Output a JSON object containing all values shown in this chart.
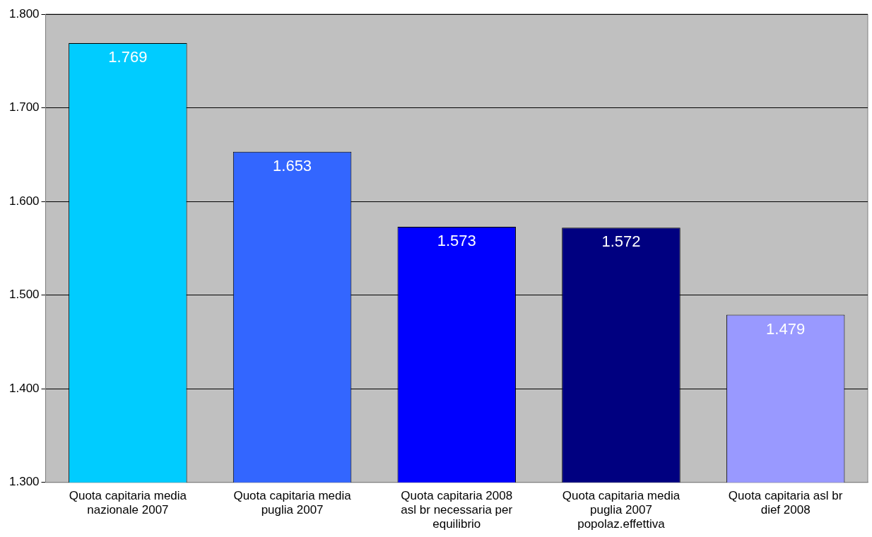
{
  "chart_data": {
    "type": "bar",
    "categories": [
      "Quota capitaria media nazionale 2007",
      "Quota capitaria media puglia 2007",
      "Quota capitaria 2008 asl br necessaria per equilibrio",
      "Quota capitaria media puglia 2007 popolaz.effettiva",
      "Quota capitaria asl br dief 2008"
    ],
    "values": [
      1769,
      1653,
      1573,
      1572,
      1479
    ],
    "colors": [
      "#00ccff",
      "#3366ff",
      "#0000ff",
      "#000080",
      "#9999ff"
    ],
    "value_labels": [
      "1.769",
      "1.653",
      "1.573",
      "1.572",
      "1.479"
    ],
    "ylim": [
      1300,
      1800
    ],
    "yticks": [
      {
        "value": 1300,
        "label": "1.300"
      },
      {
        "value": 1400,
        "label": "1.400"
      },
      {
        "value": 1500,
        "label": "1.500"
      },
      {
        "value": 1600,
        "label": "1.600"
      },
      {
        "value": 1700,
        "label": "1.700"
      },
      {
        "value": 1800,
        "label": "1.800"
      }
    ],
    "grid": "y",
    "legend": false
  }
}
